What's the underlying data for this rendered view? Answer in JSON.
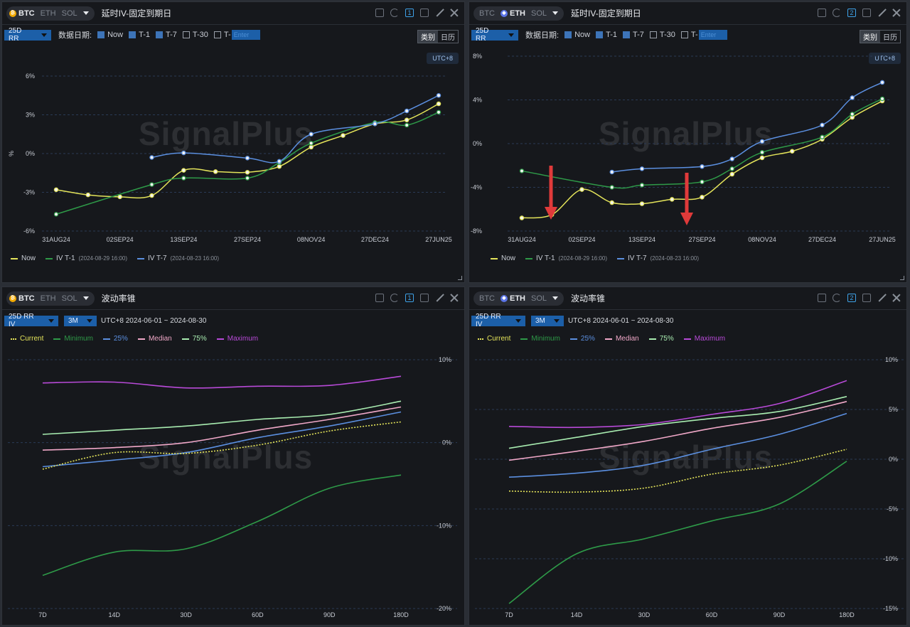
{
  "panels": [
    {
      "coins": [
        "BTC",
        "ETH",
        "SOL"
      ],
      "active_coin": "BTC",
      "title": "延时IV-固定到期日",
      "panel_num": "1",
      "dropdown": "25D RR",
      "date_label": "数据日期:",
      "checks": [
        {
          "label": "Now",
          "on": true
        },
        {
          "label": "T-1",
          "on": true
        },
        {
          "label": "T-7",
          "on": true
        },
        {
          "label": "T-30",
          "on": false
        },
        {
          "label": "T-",
          "on": false
        }
      ],
      "t_input_placeholder": "Enter",
      "toggle": [
        "类别",
        "日历"
      ],
      "utc": "UTC+8",
      "watermark": "SignalPlus",
      "legend": [
        {
          "name": "Now",
          "color": "#e4e45a"
        },
        {
          "name": "IV T-1",
          "sub": "(2024-08-29 16:00)",
          "color": "#2e9a48"
        },
        {
          "name": "IV T-7",
          "sub": "(2024-08-23 16:00)",
          "color": "#5b8fe0"
        }
      ],
      "chart_data": {
        "type": "line",
        "x_ticks": [
          "31AUG24",
          "02SEP24",
          "13SEP24",
          "27SEP24",
          "08NOV24",
          "27DEC24",
          "27JUN25"
        ],
        "y_ticks": [
          "6%",
          "3%",
          "0%",
          "-3%",
          "-6%"
        ],
        "ylim": [
          -6,
          6
        ],
        "ylabel": "%",
        "series": [
          {
            "name": "Now",
            "color": "#e4e45a",
            "points": [
              [
                0.0,
                -2.8
              ],
              [
                0.5,
                -3.2
              ],
              [
                1.0,
                -3.35
              ],
              [
                1.5,
                -3.25
              ],
              [
                2.0,
                -1.3
              ],
              [
                2.5,
                -1.4
              ],
              [
                3.0,
                -1.45
              ],
              [
                3.5,
                -1.0
              ],
              [
                4.0,
                0.5
              ],
              [
                4.5,
                1.4
              ],
              [
                5.0,
                2.3
              ],
              [
                5.5,
                2.6
              ],
              [
                6.0,
                3.85
              ]
            ]
          },
          {
            "name": "IV T-1",
            "color": "#2e9a48",
            "points": [
              [
                0.0,
                -4.7
              ],
              [
                1.5,
                -2.4
              ],
              [
                2.0,
                -1.9
              ],
              [
                3.0,
                -1.9
              ],
              [
                3.5,
                -0.7
              ],
              [
                4.0,
                0.8
              ],
              [
                5.0,
                2.4
              ],
              [
                5.5,
                2.2
              ],
              [
                6.0,
                3.2
              ]
            ]
          },
          {
            "name": "IV T-7",
            "color": "#5b8fe0",
            "points": [
              [
                1.5,
                -0.3
              ],
              [
                2.0,
                0.05
              ],
              [
                3.0,
                -0.35
              ],
              [
                3.5,
                -0.6
              ],
              [
                4.0,
                1.5
              ],
              [
                5.0,
                2.3
              ],
              [
                5.5,
                3.3
              ],
              [
                6.0,
                4.5
              ]
            ]
          }
        ]
      }
    },
    {
      "coins": [
        "BTC",
        "ETH",
        "SOL"
      ],
      "active_coin": "ETH",
      "title": "延时IV-固定到期日",
      "panel_num": "2",
      "dropdown": "25D RR",
      "date_label": "数据日期:",
      "checks": [
        {
          "label": "Now",
          "on": true
        },
        {
          "label": "T-1",
          "on": true
        },
        {
          "label": "T-7",
          "on": true
        },
        {
          "label": "T-30",
          "on": false
        },
        {
          "label": "T-",
          "on": false
        }
      ],
      "t_input_placeholder": "Enter",
      "toggle": [
        "类别",
        "日历"
      ],
      "utc": "UTC+8",
      "watermark": "SignalPlus",
      "legend": [
        {
          "name": "Now",
          "color": "#e4e45a"
        },
        {
          "name": "IV T-1",
          "sub": "(2024-08-29 16:00)",
          "color": "#2e9a48"
        },
        {
          "name": "IV T-7",
          "sub": "(2024-08-23 16:00)",
          "color": "#5b8fe0"
        }
      ],
      "chart_data": {
        "type": "line",
        "x_ticks": [
          "31AUG24",
          "02SEP24",
          "13SEP24",
          "27SEP24",
          "08NOV24",
          "27DEC24",
          "27JUN25"
        ],
        "y_ticks": [
          "8%",
          "4%",
          "0%",
          "-4%",
          "-8%"
        ],
        "ylim": [
          -8,
          8
        ],
        "ylabel": "%",
        "series": [
          {
            "name": "Now",
            "color": "#e4e45a",
            "points": [
              [
                0.0,
                -6.8
              ],
              [
                0.5,
                -6.5
              ],
              [
                1.0,
                -4.2
              ],
              [
                1.5,
                -5.4
              ],
              [
                2.0,
                -5.5
              ],
              [
                2.5,
                -5.1
              ],
              [
                3.0,
                -4.9
              ],
              [
                3.5,
                -2.8
              ],
              [
                4.0,
                -1.3
              ],
              [
                4.5,
                -0.7
              ],
              [
                5.0,
                0.4
              ],
              [
                5.5,
                2.4
              ],
              [
                6.0,
                3.9
              ]
            ]
          },
          {
            "name": "IV T-1",
            "color": "#2e9a48",
            "points": [
              [
                0.0,
                -2.5
              ],
              [
                1.5,
                -4.0
              ],
              [
                2.0,
                -3.8
              ],
              [
                3.0,
                -3.5
              ],
              [
                3.5,
                -2.3
              ],
              [
                4.0,
                -0.8
              ],
              [
                5.0,
                0.6
              ],
              [
                5.5,
                2.7
              ],
              [
                6.0,
                4.1
              ]
            ]
          },
          {
            "name": "IV T-7",
            "color": "#5b8fe0",
            "points": [
              [
                1.5,
                -2.6
              ],
              [
                2.0,
                -2.3
              ],
              [
                3.0,
                -2.1
              ],
              [
                3.5,
                -1.4
              ],
              [
                4.0,
                0.2
              ],
              [
                5.0,
                1.7
              ],
              [
                5.5,
                4.2
              ],
              [
                6.0,
                5.6
              ]
            ]
          }
        ]
      }
    },
    {
      "coins": [
        "BTC",
        "ETH",
        "SOL"
      ],
      "active_coin": "BTC",
      "title": "波动率锥",
      "panel_num": "1",
      "dropdown": "25D RR IV",
      "dropdown2": "3M",
      "range": "UTC+8 2024-06-01 ~ 2024-08-30",
      "watermark": "SignalPlus",
      "legend": [
        {
          "name": "Current",
          "color": "#e4e45a",
          "dotted": true
        },
        {
          "name": "Minimum",
          "color": "#2e9a48"
        },
        {
          "name": "25%",
          "color": "#5b8fe0"
        },
        {
          "name": "Median",
          "color": "#f0a8c8"
        },
        {
          "name": "75%",
          "color": "#a8ecb0"
        },
        {
          "name": "Maximum",
          "color": "#b84ad8"
        }
      ],
      "chart_data": {
        "type": "line",
        "x_ticks": [
          "7D",
          "14D",
          "30D",
          "60D",
          "90D",
          "180D"
        ],
        "y_ticks": [
          "10%",
          "0%",
          "-10%",
          "-20%"
        ],
        "ylim": [
          -20,
          10
        ],
        "series": [
          {
            "name": "Maximum",
            "color": "#b84ad8",
            "values": [
              7.2,
              7.3,
              6.6,
              6.8,
              6.9,
              8.0
            ]
          },
          {
            "name": "75%",
            "color": "#a8ecb0",
            "values": [
              1.0,
              1.5,
              2.0,
              2.8,
              3.4,
              5.0
            ]
          },
          {
            "name": "Median",
            "color": "#f0a8c8",
            "values": [
              -0.9,
              -0.6,
              0.0,
              1.5,
              2.8,
              4.3
            ]
          },
          {
            "name": "25%",
            "color": "#5b8fe0",
            "values": [
              -2.9,
              -2.1,
              -1.2,
              0.6,
              2.0,
              3.7
            ]
          },
          {
            "name": "Current",
            "color": "#e4e45a",
            "dotted": true,
            "values": [
              -3.2,
              -1.2,
              -1.3,
              -0.3,
              1.4,
              2.5
            ]
          },
          {
            "name": "Minimum",
            "color": "#2e9a48",
            "values": [
              -16.0,
              -13.2,
              -12.8,
              -9.5,
              -5.5,
              -3.9
            ]
          }
        ]
      }
    },
    {
      "coins": [
        "BTC",
        "ETH",
        "SOL"
      ],
      "active_coin": "ETH",
      "title": "波动率锥",
      "panel_num": "2",
      "dropdown": "25D RR IV",
      "dropdown2": "3M",
      "range": "UTC+8 2024-06-01 ~ 2024-08-30",
      "watermark": "SignalPlus",
      "legend": [
        {
          "name": "Current",
          "color": "#e4e45a",
          "dotted": true
        },
        {
          "name": "Minimum",
          "color": "#2e9a48"
        },
        {
          "name": "25%",
          "color": "#5b8fe0"
        },
        {
          "name": "Median",
          "color": "#f0a8c8"
        },
        {
          "name": "75%",
          "color": "#a8ecb0"
        },
        {
          "name": "Maximum",
          "color": "#b84ad8"
        }
      ],
      "chart_data": {
        "type": "line",
        "x_ticks": [
          "7D",
          "14D",
          "30D",
          "60D",
          "90D",
          "180D"
        ],
        "y_ticks": [
          "10%",
          "5%",
          "0%",
          "-5%",
          "-10%",
          "-15%"
        ],
        "ylim": [
          -15,
          10
        ],
        "series": [
          {
            "name": "Maximum",
            "color": "#b84ad8",
            "values": [
              3.3,
              3.2,
              3.5,
              4.5,
              5.6,
              7.9
            ]
          },
          {
            "name": "75%",
            "color": "#a8ecb0",
            "values": [
              1.1,
              2.2,
              3.3,
              4.1,
              4.8,
              6.3
            ]
          },
          {
            "name": "Median",
            "color": "#f0a8c8",
            "values": [
              -0.1,
              0.8,
              1.8,
              3.1,
              4.2,
              5.8
            ]
          },
          {
            "name": "25%",
            "color": "#5b8fe0",
            "values": [
              -1.8,
              -1.4,
              -0.6,
              1.0,
              2.5,
              4.6
            ]
          },
          {
            "name": "Current",
            "color": "#e4e45a",
            "dotted": true,
            "values": [
              -3.2,
              -3.3,
              -2.9,
              -1.5,
              -0.6,
              1.0
            ]
          },
          {
            "name": "Minimum",
            "color": "#2e9a48",
            "values": [
              -14.5,
              -9.5,
              -8.0,
              -6.2,
              -4.5,
              -0.2
            ]
          }
        ]
      }
    }
  ]
}
